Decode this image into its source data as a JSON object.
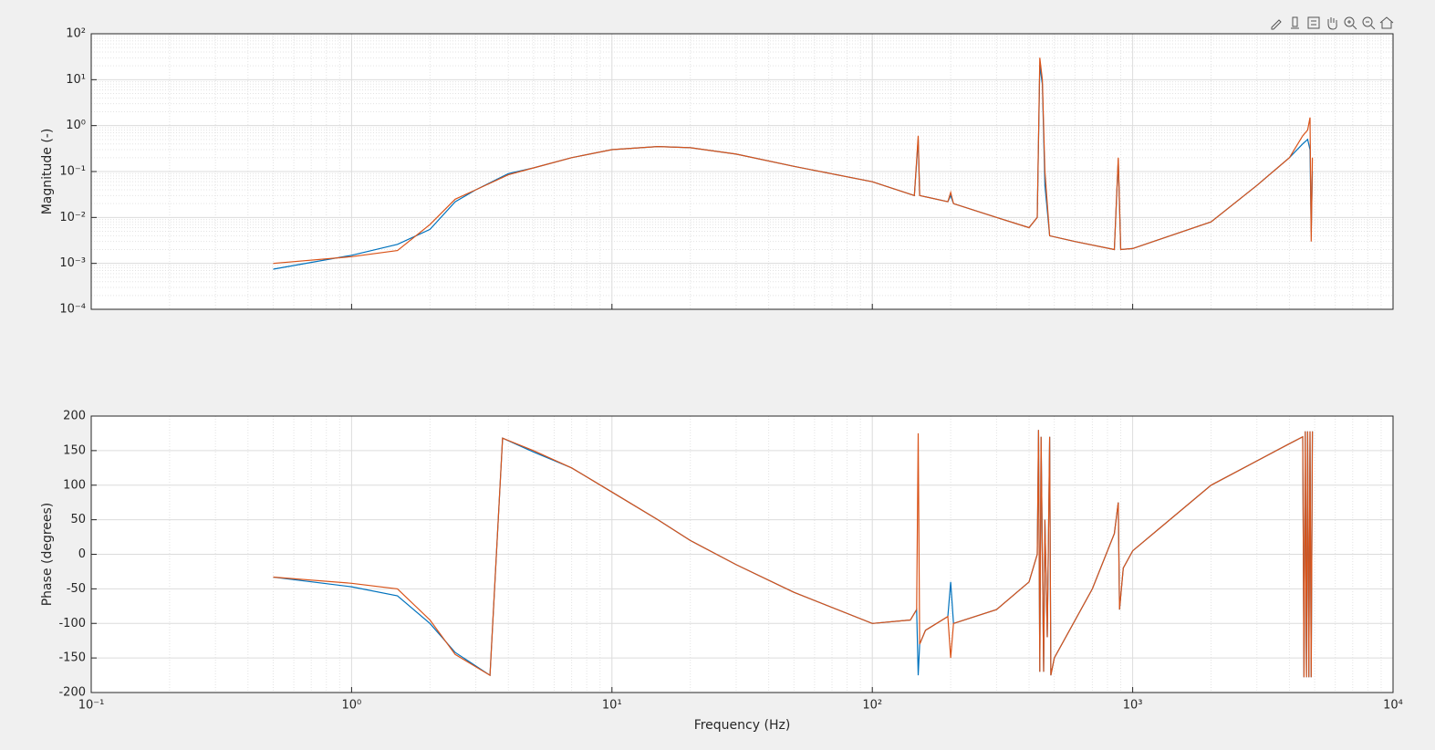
{
  "chart_data": [
    {
      "type": "line",
      "ylabel": "Magnitude (-)",
      "x_scale": "log",
      "y_scale": "log",
      "grid": true,
      "minor_grid": true,
      "xlim": [
        0.1,
        10000
      ],
      "xticks": [
        0.1,
        1,
        10,
        100,
        1000,
        10000
      ],
      "ylim": [
        0.0001,
        100
      ],
      "yticks": [
        {
          "value": 0.0001,
          "label": "10⁻⁴"
        },
        {
          "value": 0.001,
          "label": "10⁻³"
        },
        {
          "value": 0.01,
          "label": "10⁻²"
        },
        {
          "value": 0.1,
          "label": "10⁻¹"
        },
        {
          "value": 1,
          "label": "10⁰"
        },
        {
          "value": 10,
          "label": "10¹"
        },
        {
          "value": 100,
          "label": "10²"
        }
      ],
      "x": [
        0.5,
        1,
        1.5,
        2,
        2.5,
        3,
        4,
        5,
        7,
        10,
        15,
        20,
        30,
        50,
        100,
        145,
        150,
        152,
        195,
        200,
        205,
        300,
        400,
        430,
        440,
        450,
        460,
        480,
        600,
        850,
        880,
        900,
        1000,
        2000,
        3000,
        4000,
        4500,
        4700,
        4800,
        4850,
        4900
      ],
      "series": [
        {
          "color": "#0072bd",
          "values": [
            0.00075,
            0.0015,
            0.0026,
            0.0055,
            0.022,
            0.04,
            0.09,
            0.12,
            0.2,
            0.3,
            0.35,
            0.33,
            0.24,
            0.13,
            0.06,
            0.03,
            0.5,
            0.03,
            0.022,
            0.03,
            0.02,
            0.01,
            0.006,
            0.01,
            20,
            8,
            0.05,
            0.004,
            0.003,
            0.002,
            0.18,
            0.002,
            0.0021,
            0.008,
            0.05,
            0.2,
            0.4,
            0.5,
            0.3,
            0.005,
            0.1
          ]
        },
        {
          "color": "#d95319",
          "values": [
            0.001,
            0.0014,
            0.0019,
            0.007,
            0.025,
            0.04,
            0.085,
            0.12,
            0.2,
            0.3,
            0.35,
            0.33,
            0.24,
            0.13,
            0.06,
            0.03,
            0.6,
            0.03,
            0.022,
            0.035,
            0.02,
            0.01,
            0.006,
            0.01,
            30,
            10,
            0.1,
            0.004,
            0.003,
            0.002,
            0.2,
            0.002,
            0.0021,
            0.008,
            0.05,
            0.2,
            0.6,
            0.8,
            1.5,
            0.003,
            0.2
          ]
        }
      ]
    },
    {
      "type": "line",
      "ylabel": "Phase (degrees)",
      "xlabel": "Frequency (Hz)",
      "x_scale": "log",
      "y_scale": "linear",
      "grid": true,
      "minor_grid": true,
      "xlim": [
        0.1,
        10000
      ],
      "xticks": [
        {
          "value": 0.1,
          "label": "10⁻¹"
        },
        {
          "value": 1,
          "label": "10⁰"
        },
        {
          "value": 10,
          "label": "10¹"
        },
        {
          "value": 100,
          "label": "10²"
        },
        {
          "value": 1000,
          "label": "10³"
        },
        {
          "value": 10000,
          "label": "10⁴"
        }
      ],
      "ylim": [
        -200,
        200
      ],
      "yticks": [
        -200,
        -150,
        -100,
        -50,
        0,
        50,
        100,
        150,
        200
      ],
      "x": [
        0.5,
        1,
        1.5,
        2,
        2.5,
        3.4,
        3.8,
        5,
        7,
        10,
        15,
        20,
        30,
        50,
        100,
        140,
        148,
        150,
        152,
        160,
        195,
        200,
        205,
        300,
        400,
        430,
        435,
        440,
        445,
        455,
        460,
        470,
        480,
        485,
        500,
        700,
        850,
        880,
        890,
        920,
        1000,
        2000,
        4000,
        4500,
        4550,
        4600,
        4650,
        4700,
        4750,
        4800,
        4850,
        4900
      ],
      "series": [
        {
          "color": "#0072bd",
          "values": [
            -33,
            -47,
            -60,
            -100,
            -142,
            -175,
            168,
            148,
            125,
            90,
            50,
            20,
            -15,
            -55,
            -100,
            -95,
            -80,
            -175,
            -130,
            -110,
            -90,
            -40,
            -100,
            -80,
            -40,
            0,
            180,
            -170,
            170,
            -170,
            50,
            -120,
            170,
            -175,
            -150,
            -50,
            30,
            75,
            -80,
            -20,
            5,
            100,
            160,
            170,
            -178,
            178,
            -178,
            178,
            -178,
            178,
            -178,
            178
          ]
        },
        {
          "color": "#d95319",
          "values": [
            -33,
            -42,
            -50,
            -95,
            -145,
            -175,
            168,
            150,
            125,
            90,
            50,
            20,
            -15,
            -55,
            -100,
            -95,
            -80,
            175,
            -130,
            -110,
            -90,
            -150,
            -100,
            -80,
            -40,
            0,
            180,
            -170,
            170,
            -170,
            50,
            -120,
            170,
            -175,
            -150,
            -50,
            30,
            75,
            -80,
            -20,
            5,
            100,
            160,
            170,
            -178,
            178,
            -178,
            178,
            -178,
            178,
            -178,
            178
          ]
        }
      ]
    }
  ]
}
